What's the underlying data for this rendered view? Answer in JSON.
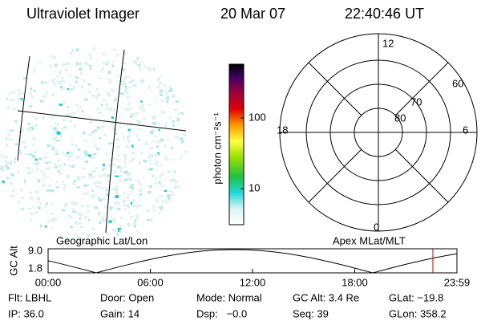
{
  "header": {
    "title": "Ultraviolet Imager",
    "date": "20 Mar 07",
    "time": "22:40:46 UT"
  },
  "colorbar": {
    "label": "photon cm⁻²s⁻¹",
    "ticks": [
      "100",
      "10"
    ]
  },
  "polar": {
    "mlt_labels": [
      "12",
      "18",
      "6",
      "0"
    ],
    "lat_labels": [
      "60",
      "70",
      "80"
    ]
  },
  "left_label": "Geographic Lat/Lon",
  "right_label": "Apex MLat/MLT",
  "orbit": {
    "y_label": "GC Alt",
    "yticks": [
      "9.0",
      "1.8"
    ],
    "xticks": [
      "00:00",
      "06:00",
      "12:00",
      "18:00",
      "23:59"
    ]
  },
  "status": [
    [
      "Flt: LBHL",
      "Door: Open",
      "Mode: Normal",
      "GC Alt: 3.4 Re",
      "GLat: −19.8"
    ],
    [
      "IP: 36.0",
      "Gain: 14",
      "Dsp:   −0.0",
      "Seq: 39",
      "GLon: 358.2"
    ]
  ]
}
